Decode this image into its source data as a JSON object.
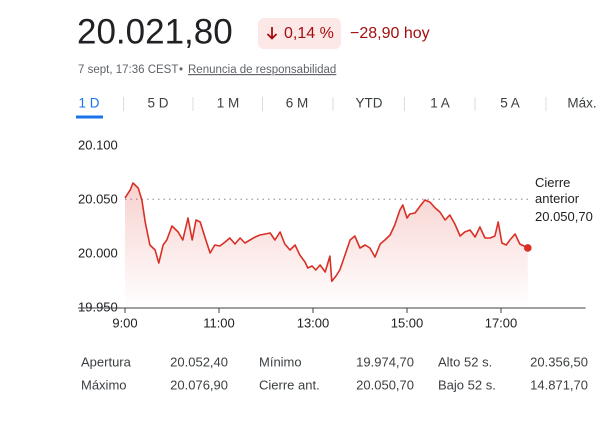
{
  "header": {
    "price": "20.021,80",
    "change_percent": "0,14 %",
    "change": "−28,90 hoy",
    "timestamp": "7 sept, 17:36 CEST",
    "separator": "•",
    "disclaimer": "Renuncia de responsabilidad"
  },
  "tabs": {
    "items": [
      "1 D",
      "5 D",
      "1 M",
      "6 M",
      "YTD",
      "1 A",
      "5 A",
      "Máx."
    ],
    "selected": 0
  },
  "chart_data": {
    "type": "line",
    "color": "#d93025",
    "grid": false,
    "x": [
      9,
      9.11,
      9.17,
      9.28,
      9.36,
      9.43,
      9.53,
      9.64,
      9.72,
      9.81,
      9.89,
      10,
      10.13,
      10.23,
      10.34,
      10.43,
      10.51,
      10.6,
      10.7,
      10.81,
      10.91,
      11.02,
      11.13,
      11.23,
      11.34,
      11.45,
      11.55,
      11.66,
      11.77,
      11.87,
      11.98,
      12.09,
      12.19,
      12.3,
      12.4,
      12.51,
      12.62,
      12.72,
      12.83,
      12.89,
      12.98,
      13.06,
      13.15,
      13.26,
      13.36,
      13.4,
      13.49,
      13.57,
      13.68,
      13.79,
      13.89,
      14,
      14.11,
      14.21,
      14.32,
      14.43,
      14.53,
      14.64,
      14.74,
      14.85,
      14.91,
      15,
      15.06,
      15.17,
      15.28,
      15.38,
      15.49,
      15.6,
      15.7,
      15.81,
      15.91,
      16.02,
      16.13,
      16.23,
      16.34,
      16.45,
      16.55,
      16.66,
      16.77,
      16.87,
      16.94,
      17.02,
      17.11,
      17.19,
      17.3,
      17.4,
      17.49,
      17.57
    ],
    "values": [
      20051.9,
      20059.3,
      20065.7,
      20061.1,
      20050,
      20029.6,
      20008.3,
      20003.7,
      19991.7,
      20008.3,
      20013,
      20025.9,
      20020.4,
      20013,
      20033.3,
      20013,
      20031.5,
      20029.6,
      20015.7,
      20000.9,
      20008.3,
      20007.4,
      20011.1,
      20014.8,
      20009.3,
      20014.8,
      20010.2,
      20013,
      20015.7,
      20017.6,
      20018.5,
      20019.4,
      20013,
      20020.4,
      20009.3,
      20003.7,
      20008.3,
      19999.1,
      19992.6,
      19987,
      19988.9,
      19985.2,
      19989.8,
      19983.3,
      19998.1,
      19974.7,
      19979.6,
      19985.2,
      19999.1,
      20013,
      20016.7,
      20005.6,
      20008.3,
      20005.6,
      19997.2,
      20009.3,
      20013,
      20017.6,
      20026.9,
      20040.7,
      20045.4,
      20033.3,
      20037,
      20038,
      20044.4,
      20050,
      20048.1,
      20042.6,
      20038.9,
      20031.5,
      20036.1,
      20027.8,
      20016.7,
      20020.4,
      20022.2,
      20015.7,
      20025,
      20014.8,
      20014.8,
      20016.7,
      20029.6,
      20010.2,
      20008.3,
      20013,
      20018.5,
      20009.3,
      20007.4,
      20005.6
    ],
    "xlim": [
      9,
      18.8
    ],
    "xticks": [
      {
        "value": 9,
        "label": "9:00"
      },
      {
        "value": 11,
        "label": "11:00"
      },
      {
        "value": 13,
        "label": "13:00"
      },
      {
        "value": 15,
        "label": "15:00"
      },
      {
        "value": 17,
        "label": "17:00"
      }
    ],
    "ylim": [
      19950,
      20100
    ],
    "yticks": [
      {
        "value": 19950,
        "label": "19.950"
      },
      {
        "value": 20000,
        "label": "20.000"
      },
      {
        "value": 20050,
        "label": "20.050"
      },
      {
        "value": 20100,
        "label": "20.100"
      }
    ],
    "reference_line": {
      "value": 20050.7,
      "label": "20.050,70",
      "title": "Cierre anterior"
    }
  },
  "stats": {
    "rows": [
      [
        "Apertura",
        "20.052,40",
        "Mínimo",
        "19.974,70",
        "Alto 52 s.",
        "20.356,50"
      ],
      [
        "Máximo",
        "20.076,90",
        "Cierre ant.",
        "20.050,70",
        "Bajo 52 s.",
        "14.871,70"
      ]
    ]
  }
}
